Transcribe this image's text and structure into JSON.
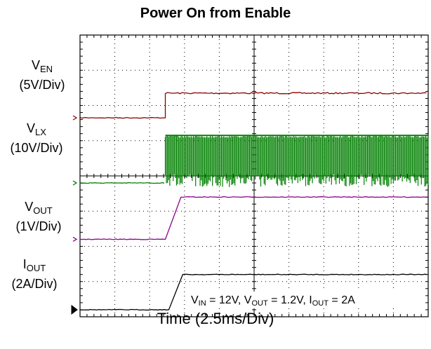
{
  "chart_data": {
    "type": "line",
    "title": "Power On from Enable",
    "xlabel": "Time (2.5ms/Div)",
    "x_unit_per_div": "2.5ms",
    "divisions": {
      "x": 10,
      "y": 8
    },
    "grid": true,
    "annotation": {
      "vin_sym": "V",
      "vin_sub": "IN",
      "vin_val": " = 12V, ",
      "vout_sym": "V",
      "vout_sub": "OUT",
      "vout_val": " = 1.2V, ",
      "iout_sym": "I",
      "iout_sub": "OUT",
      "iout_val": " = 2A"
    },
    "series": [
      {
        "sym": "V",
        "sub": "EN",
        "scale": "(5V/Div)",
        "color": "#8b0000",
        "marker_color": "#8b0000",
        "ground_div": 2.35,
        "low": 0,
        "high": 0.7,
        "step_div": 2.45,
        "rise_div": 0.0,
        "shape": "step"
      },
      {
        "sym": "V",
        "sub": "LX",
        "scale": "(10V/Div)",
        "color": "#008000",
        "marker_color": "#008000",
        "ground_div": 4.2,
        "low": 0,
        "high": 1.35,
        "step_div": 2.45,
        "shape": "switching",
        "burst_end_div": 10.0
      },
      {
        "sym": "V",
        "sub": "OUT",
        "scale": "(1V/Div)",
        "color": "#8b008b",
        "marker_color": "#8b008b",
        "ground_div": 5.8,
        "low": 0,
        "high": 1.2,
        "step_div": 2.45,
        "rise_end_div": 2.9,
        "shape": "ramp"
      },
      {
        "sym": "I",
        "sub": "OUT",
        "scale": "(2A/Div)",
        "color": "#000000",
        "marker_color": "#000000",
        "ground_div": 7.8,
        "low": 0,
        "high": 1.0,
        "step_div": 2.55,
        "rise_end_div": 2.95,
        "shape": "ramp"
      }
    ]
  }
}
